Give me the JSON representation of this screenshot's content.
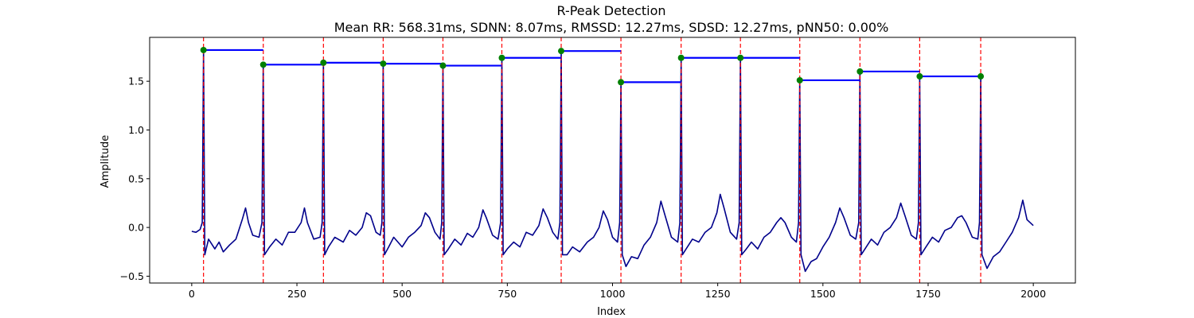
{
  "chart_data": {
    "type": "line",
    "title": "R-Peak Detection",
    "subtitle": "Mean RR: 568.31ms, SDNN: 8.07ms, RMSSD: 12.27ms, SDSD: 12.27ms, pNN50: 0.00%",
    "xlabel": "Index",
    "ylabel": "Amplitude",
    "xlim": [
      -100,
      2100
    ],
    "ylim": [
      -0.57,
      1.95
    ],
    "xticks": [
      0,
      250,
      500,
      750,
      1000,
      1250,
      1500,
      1750,
      2000
    ],
    "yticks": [
      -0.5,
      0.0,
      0.5,
      1.0,
      1.5
    ],
    "ytick_labels": [
      "−0.5",
      "0.0",
      "0.5",
      "1.0",
      "1.5"
    ],
    "grid": false,
    "colors": {
      "signal": "#00008b",
      "peak_marker": "#008000",
      "peak_line": "#ff0000",
      "rr_segment": "#0000ff"
    },
    "r_peaks": [
      {
        "x": 28,
        "y": 1.82
      },
      {
        "x": 170,
        "y": 1.67
      },
      {
        "x": 313,
        "y": 1.69
      },
      {
        "x": 455,
        "y": 1.68
      },
      {
        "x": 597,
        "y": 1.66
      },
      {
        "x": 737,
        "y": 1.74
      },
      {
        "x": 878,
        "y": 1.81
      },
      {
        "x": 1020,
        "y": 1.49
      },
      {
        "x": 1163,
        "y": 1.74
      },
      {
        "x": 1304,
        "y": 1.74
      },
      {
        "x": 1445,
        "y": 1.51
      },
      {
        "x": 1588,
        "y": 1.6
      },
      {
        "x": 1730,
        "y": 1.55
      },
      {
        "x": 1875,
        "y": 1.55
      }
    ],
    "rr_segments": [
      {
        "x0": 28,
        "x1": 170,
        "y": 1.82
      },
      {
        "x0": 170,
        "x1": 313,
        "y": 1.67
      },
      {
        "x0": 313,
        "x1": 455,
        "y": 1.69
      },
      {
        "x0": 455,
        "x1": 597,
        "y": 1.68
      },
      {
        "x0": 597,
        "x1": 737,
        "y": 1.66
      },
      {
        "x0": 737,
        "x1": 878,
        "y": 1.74
      },
      {
        "x0": 878,
        "x1": 1020,
        "y": 1.81
      },
      {
        "x0": 1020,
        "x1": 1163,
        "y": 1.49
      },
      {
        "x0": 1163,
        "x1": 1304,
        "y": 1.74
      },
      {
        "x0": 1304,
        "x1": 1445,
        "y": 1.74
      },
      {
        "x0": 1445,
        "x1": 1588,
        "y": 1.51
      },
      {
        "x0": 1588,
        "x1": 1730,
        "y": 1.6
      },
      {
        "x0": 1730,
        "x1": 1875,
        "y": 1.55
      }
    ],
    "baseline_wave": [
      [
        0,
        -0.04
      ],
      [
        10,
        -0.05
      ],
      [
        20,
        -0.02
      ],
      [
        40,
        -0.12
      ],
      [
        55,
        -0.22
      ],
      [
        65,
        -0.15
      ],
      [
        75,
        -0.25
      ],
      [
        90,
        -0.18
      ],
      [
        105,
        -0.12
      ],
      [
        120,
        0.08
      ],
      [
        128,
        0.2
      ],
      [
        135,
        0.05
      ],
      [
        145,
        -0.08
      ],
      [
        160,
        -0.1
      ],
      [
        185,
        -0.2
      ],
      [
        200,
        -0.12
      ],
      [
        215,
        -0.18
      ],
      [
        230,
        -0.05
      ],
      [
        245,
        -0.05
      ],
      [
        260,
        0.05
      ],
      [
        268,
        0.2
      ],
      [
        275,
        0.05
      ],
      [
        290,
        -0.12
      ],
      [
        305,
        -0.1
      ],
      [
        325,
        -0.2
      ],
      [
        340,
        -0.1
      ],
      [
        360,
        -0.15
      ],
      [
        375,
        -0.03
      ],
      [
        390,
        -0.08
      ],
      [
        405,
        0.0
      ],
      [
        415,
        0.15
      ],
      [
        425,
        0.12
      ],
      [
        438,
        -0.05
      ],
      [
        448,
        -0.08
      ],
      [
        468,
        -0.2
      ],
      [
        480,
        -0.1
      ],
      [
        500,
        -0.2
      ],
      [
        515,
        -0.1
      ],
      [
        530,
        -0.05
      ],
      [
        545,
        0.02
      ],
      [
        555,
        0.15
      ],
      [
        565,
        0.1
      ],
      [
        578,
        -0.05
      ],
      [
        590,
        -0.12
      ],
      [
        610,
        -0.22
      ],
      [
        625,
        -0.12
      ],
      [
        640,
        -0.18
      ],
      [
        655,
        -0.06
      ],
      [
        668,
        -0.1
      ],
      [
        682,
        0.0
      ],
      [
        692,
        0.18
      ],
      [
        700,
        0.1
      ],
      [
        715,
        -0.08
      ],
      [
        728,
        -0.12
      ],
      [
        750,
        -0.22
      ],
      [
        765,
        -0.15
      ],
      [
        780,
        -0.2
      ],
      [
        795,
        -0.05
      ],
      [
        810,
        -0.08
      ],
      [
        825,
        0.02
      ],
      [
        835,
        0.19
      ],
      [
        845,
        0.1
      ],
      [
        858,
        -0.05
      ],
      [
        870,
        -0.12
      ],
      [
        892,
        -0.28
      ],
      [
        905,
        -0.2
      ],
      [
        922,
        -0.25
      ],
      [
        940,
        -0.15
      ],
      [
        955,
        -0.1
      ],
      [
        968,
        0.0
      ],
      [
        978,
        0.17
      ],
      [
        988,
        0.08
      ],
      [
        1000,
        -0.1
      ],
      [
        1012,
        -0.15
      ],
      [
        1032,
        -0.4
      ],
      [
        1045,
        -0.3
      ],
      [
        1060,
        -0.32
      ],
      [
        1075,
        -0.18
      ],
      [
        1090,
        -0.1
      ],
      [
        1105,
        0.05
      ],
      [
        1115,
        0.27
      ],
      [
        1125,
        0.12
      ],
      [
        1140,
        -0.1
      ],
      [
        1155,
        -0.15
      ],
      [
        1175,
        -0.22
      ],
      [
        1190,
        -0.12
      ],
      [
        1205,
        -0.15
      ],
      [
        1220,
        -0.05
      ],
      [
        1235,
        0.0
      ],
      [
        1248,
        0.15
      ],
      [
        1256,
        0.34
      ],
      [
        1265,
        0.2
      ],
      [
        1280,
        -0.05
      ],
      [
        1295,
        -0.12
      ],
      [
        1318,
        -0.22
      ],
      [
        1330,
        -0.15
      ],
      [
        1345,
        -0.22
      ],
      [
        1360,
        -0.1
      ],
      [
        1375,
        -0.05
      ],
      [
        1390,
        0.05
      ],
      [
        1400,
        0.1
      ],
      [
        1410,
        0.05
      ],
      [
        1425,
        -0.1
      ],
      [
        1437,
        -0.15
      ],
      [
        1458,
        -0.45
      ],
      [
        1472,
        -0.35
      ],
      [
        1485,
        -0.32
      ],
      [
        1500,
        -0.2
      ],
      [
        1515,
        -0.1
      ],
      [
        1530,
        0.05
      ],
      [
        1540,
        0.2
      ],
      [
        1550,
        0.1
      ],
      [
        1565,
        -0.08
      ],
      [
        1578,
        -0.12
      ],
      [
        1600,
        -0.22
      ],
      [
        1615,
        -0.12
      ],
      [
        1630,
        -0.18
      ],
      [
        1645,
        -0.05
      ],
      [
        1660,
        0.0
      ],
      [
        1675,
        0.1
      ],
      [
        1685,
        0.25
      ],
      [
        1695,
        0.12
      ],
      [
        1710,
        -0.08
      ],
      [
        1722,
        -0.12
      ],
      [
        1745,
        -0.2
      ],
      [
        1760,
        -0.1
      ],
      [
        1775,
        -0.15
      ],
      [
        1790,
        -0.03
      ],
      [
        1805,
        0.0
      ],
      [
        1820,
        0.1
      ],
      [
        1830,
        0.12
      ],
      [
        1840,
        0.05
      ],
      [
        1855,
        -0.1
      ],
      [
        1868,
        -0.12
      ],
      [
        1890,
        -0.42
      ],
      [
        1905,
        -0.3
      ],
      [
        1920,
        -0.25
      ],
      [
        1935,
        -0.15
      ],
      [
        1950,
        -0.05
      ],
      [
        1965,
        0.1
      ],
      [
        1975,
        0.28
      ],
      [
        1985,
        0.08
      ],
      [
        2000,
        0.02
      ]
    ]
  }
}
